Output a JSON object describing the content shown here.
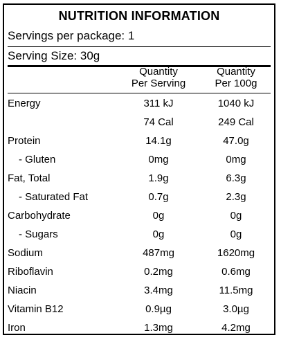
{
  "title": "NUTRITION INFORMATION",
  "servings_per_package": "Servings per package: 1",
  "serving_size": "Serving Size: 30g",
  "columns": {
    "per_serving": [
      "Quantity",
      "Per Serving"
    ],
    "per_100g": [
      "Quantity",
      "Per 100g"
    ]
  },
  "rows": [
    {
      "name": "Energy",
      "per_serving": "311 kJ",
      "per_100g": "1040 kJ"
    },
    {
      "name": "",
      "per_serving": "74 Cal",
      "per_100g": "249 Cal"
    },
    {
      "name": "Protein",
      "per_serving": "14.1g",
      "per_100g": "47.0g"
    },
    {
      "name": "- Gluten",
      "per_serving": "0mg",
      "per_100g": "0mg"
    },
    {
      "name": "Fat, Total",
      "per_serving": "1.9g",
      "per_100g": "6.3g"
    },
    {
      "name": "- Saturated Fat",
      "per_serving": "0.7g",
      "per_100g": "2.3g"
    },
    {
      "name": "Carbohydrate",
      "per_serving": "0g",
      "per_100g": "0g"
    },
    {
      "name": "- Sugars",
      "per_serving": "0g",
      "per_100g": "0g"
    },
    {
      "name": "Sodium",
      "per_serving": "487mg",
      "per_100g": "1620mg"
    },
    {
      "name": "Riboflavin",
      "per_serving": "0.2mg",
      "per_100g": "0.6mg"
    },
    {
      "name": "Niacin",
      "per_serving": "3.4mg",
      "per_100g": "11.5mg"
    },
    {
      "name": "Vitamin B12",
      "per_serving": "0.9µg",
      "per_100g": "3.0µg"
    },
    {
      "name": "Iron",
      "per_serving": "1.3mg",
      "per_100g": "4.2mg"
    }
  ]
}
